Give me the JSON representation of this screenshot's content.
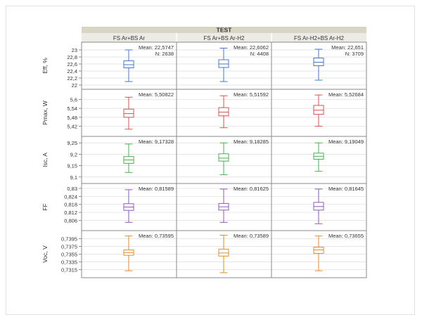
{
  "header": "TEST",
  "columns": [
    "FS Ar+BS Ar",
    "FS Ar+BS Ar-H2",
    "FS Ar-H2+BS Ar-H2"
  ],
  "colors": {
    "header_bg": "#d9d5c5",
    "grid": "#dcdcdc",
    "panel_border": "#8a8a8a",
    "eff": "#4a78c8",
    "pmax": "#d9534f",
    "isc": "#4caf50",
    "ff": "#8e5bb8",
    "voc": "#e38c2d"
  },
  "chart_data": {
    "type": "boxplot",
    "title": "TEST",
    "categories": [
      "FS Ar+BS Ar",
      "FS Ar+BS Ar-H2",
      "FS Ar-H2+BS Ar-H2"
    ],
    "rows": [
      {
        "ylabel": "Eff, %",
        "color_key": "eff",
        "ylim": [
          22.0,
          23.1
        ],
        "ticks": [
          "23",
          "22,8",
          "22,6",
          "22,4",
          "22,2",
          "22"
        ],
        "tick_values": [
          23.0,
          22.8,
          22.6,
          22.4,
          22.2,
          22.0
        ],
        "boxes": [
          {
            "min": 22.1,
            "q1": 22.49,
            "median": 22.58,
            "q3": 22.69,
            "max": 23.0,
            "mean_label": "Mean: 22,5747",
            "n_label": "N: 2638"
          },
          {
            "min": 22.1,
            "q1": 22.5,
            "median": 22.6,
            "q3": 22.72,
            "max": 23.05,
            "mean_label": "Mean: 22,6062",
            "n_label": "N: 4408"
          },
          {
            "min": 22.14,
            "q1": 22.55,
            "median": 22.65,
            "q3": 22.77,
            "max": 23.02,
            "mean_label": "Mean: 22,651",
            "n_label": "N: 3709"
          }
        ]
      },
      {
        "ylabel": "Pmax, W",
        "color_key": "pmax",
        "ylim": [
          5.38,
          5.64
        ],
        "ticks": [
          "5,6",
          "5,54",
          "5,48",
          "5,42"
        ],
        "tick_values": [
          5.6,
          5.54,
          5.48,
          5.42
        ],
        "boxes": [
          {
            "min": 5.4,
            "q1": 5.48,
            "median": 5.505,
            "q3": 5.535,
            "max": 5.615,
            "mean_label": "Mean: 5,50822",
            "n_label": ""
          },
          {
            "min": 5.41,
            "q1": 5.49,
            "median": 5.515,
            "q3": 5.545,
            "max": 5.625,
            "mean_label": "Mean: 5,51592",
            "n_label": ""
          },
          {
            "min": 5.42,
            "q1": 5.5,
            "median": 5.528,
            "q3": 5.56,
            "max": 5.63,
            "mean_label": "Mean: 5,52684",
            "n_label": ""
          }
        ]
      },
      {
        "ylabel": "Isc, A",
        "color_key": "isc",
        "ylim": [
          9.09,
          9.26
        ],
        "ticks": [
          "9,25",
          "9,2",
          "9,15",
          "9,1"
        ],
        "tick_values": [
          9.25,
          9.2,
          9.15,
          9.1
        ],
        "boxes": [
          {
            "min": 9.12,
            "q1": 9.16,
            "median": 9.175,
            "q3": 9.19,
            "max": 9.245,
            "mean_label": "Mean: 9,17328",
            "n_label": ""
          },
          {
            "min": 9.11,
            "q1": 9.17,
            "median": 9.183,
            "q3": 9.202,
            "max": 9.25,
            "mean_label": "Mean: 9,18285",
            "n_label": ""
          },
          {
            "min": 9.125,
            "q1": 9.178,
            "median": 9.191,
            "q3": 9.205,
            "max": 9.25,
            "mean_label": "Mean: 9,19049",
            "n_label": ""
          }
        ]
      },
      {
        "ylabel": "FF",
        "color_key": "ff",
        "ylim": [
          0.8015,
          0.8305
        ],
        "ticks": [
          "0,83",
          "0,824",
          "0,818",
          "0,812",
          "0,806"
        ],
        "tick_values": [
          0.83,
          0.824,
          0.818,
          0.812,
          0.806
        ],
        "boxes": [
          {
            "min": 0.8045,
            "q1": 0.8135,
            "median": 0.816,
            "q3": 0.8185,
            "max": 0.829,
            "mean_label": "Mean: 0,81589",
            "n_label": ""
          },
          {
            "min": 0.8045,
            "q1": 0.8137,
            "median": 0.8162,
            "q3": 0.8187,
            "max": 0.8295,
            "mean_label": "Mean: 0,81625",
            "n_label": ""
          },
          {
            "min": 0.8035,
            "q1": 0.8137,
            "median": 0.8164,
            "q3": 0.8195,
            "max": 0.8295,
            "mean_label": "Mean: 0,81645",
            "n_label": ""
          }
        ]
      },
      {
        "ylabel": "Voc, V",
        "color_key": "voc",
        "ylim": [
          0.7305,
          0.7405
        ],
        "ticks": [
          "0,7395",
          "0,7375",
          "0,7355",
          "0,7335",
          "0,7315"
        ],
        "tick_values": [
          0.7395,
          0.7375,
          0.7355,
          0.7335,
          0.7315
        ],
        "boxes": [
          {
            "min": 0.7312,
            "q1": 0.7352,
            "median": 0.7359,
            "q3": 0.7366,
            "max": 0.7402,
            "mean_label": "Mean: 0,73595",
            "n_label": ""
          },
          {
            "min": 0.7307,
            "q1": 0.735,
            "median": 0.7358,
            "q3": 0.7368,
            "max": 0.7404,
            "mean_label": "Mean: 0,73589",
            "n_label": ""
          },
          {
            "min": 0.7312,
            "q1": 0.7357,
            "median": 0.7366,
            "q3": 0.7373,
            "max": 0.7402,
            "mean_label": "Mean: 0,73655",
            "n_label": ""
          }
        ]
      }
    ]
  }
}
